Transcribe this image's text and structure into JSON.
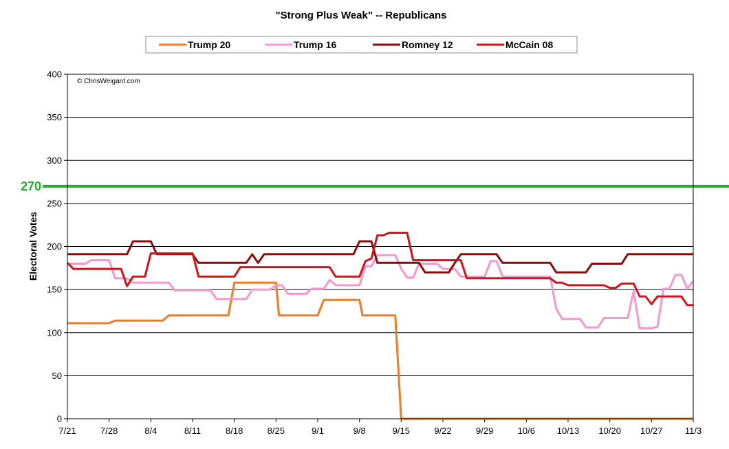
{
  "chart_data": {
    "type": "line",
    "title": "\"Strong Plus Weak\" -- Republicans",
    "ylabel": "Electoral Votes",
    "xlabel": "",
    "copyright": "© ChrisWeigant.com",
    "ylim": [
      0,
      400
    ],
    "yticks": [
      0,
      50,
      100,
      150,
      200,
      250,
      300,
      350,
      400
    ],
    "xlim_days": [
      0,
      105
    ],
    "x_tick_labels": [
      "7/21",
      "7/28",
      "8/4",
      "8/11",
      "8/18",
      "8/25",
      "9/1",
      "9/8",
      "9/15",
      "9/22",
      "9/29",
      "10/6",
      "10/13",
      "10/20",
      "10/27",
      "11/3"
    ],
    "x_tick_days": [
      0,
      7,
      14,
      21,
      28,
      35,
      42,
      49,
      56,
      63,
      70,
      77,
      84,
      91,
      98,
      105
    ],
    "grid": true,
    "legend_position": "top",
    "reference_line": {
      "value": 270,
      "label": "270",
      "color": "#22b02a"
    },
    "series": [
      {
        "name": "Trump 20",
        "color": "#f47a1f",
        "points": [
          [
            0,
            111
          ],
          [
            7,
            111
          ],
          [
            8,
            114
          ],
          [
            16,
            114
          ],
          [
            17,
            120
          ],
          [
            27,
            120
          ],
          [
            28,
            158
          ],
          [
            35,
            158
          ],
          [
            35.5,
            120
          ],
          [
            42,
            120
          ],
          [
            43,
            138
          ],
          [
            49,
            138
          ],
          [
            49.5,
            120
          ],
          [
            55,
            120
          ],
          [
            56,
            0
          ],
          [
            105,
            0
          ]
        ]
      },
      {
        "name": "Trump 16",
        "color": "#f598cc",
        "points": [
          [
            0,
            180
          ],
          [
            3,
            180
          ],
          [
            4,
            184
          ],
          [
            7,
            184
          ],
          [
            8,
            163
          ],
          [
            10,
            163
          ],
          [
            11,
            158
          ],
          [
            17,
            158
          ],
          [
            18,
            149
          ],
          [
            24,
            149
          ],
          [
            25,
            139
          ],
          [
            30,
            139
          ],
          [
            31,
            150
          ],
          [
            34,
            150
          ],
          [
            35,
            155
          ],
          [
            36,
            155
          ],
          [
            37,
            145
          ],
          [
            40,
            145
          ],
          [
            41,
            151
          ],
          [
            43,
            151
          ],
          [
            44,
            161
          ],
          [
            45,
            155
          ],
          [
            49,
            155
          ],
          [
            50,
            177
          ],
          [
            51,
            177
          ],
          [
            52,
            190
          ],
          [
            55,
            190
          ],
          [
            56,
            174
          ],
          [
            57,
            164
          ],
          [
            58,
            164
          ],
          [
            59,
            180
          ],
          [
            62,
            180
          ],
          [
            63,
            174
          ],
          [
            64,
            174
          ],
          [
            65,
            174
          ],
          [
            66,
            165
          ],
          [
            70,
            165
          ],
          [
            71,
            183
          ],
          [
            72,
            183
          ],
          [
            73,
            165
          ],
          [
            80,
            165
          ],
          [
            81,
            165
          ],
          [
            82,
            128
          ],
          [
            83,
            116
          ],
          [
            86,
            116
          ],
          [
            87,
            106
          ],
          [
            89,
            106
          ],
          [
            90,
            117
          ],
          [
            94,
            117
          ],
          [
            95,
            148
          ],
          [
            96,
            105
          ],
          [
            98,
            105
          ],
          [
            99,
            107
          ],
          [
            100,
            151
          ],
          [
            101,
            151
          ],
          [
            102,
            167
          ],
          [
            103,
            167
          ],
          [
            104,
            151
          ],
          [
            105,
            160
          ]
        ]
      },
      {
        "name": "Romney 12",
        "color": "#8b0a0a",
        "points": [
          [
            0,
            191
          ],
          [
            10,
            191
          ],
          [
            11,
            206
          ],
          [
            14,
            206
          ],
          [
            15,
            191
          ],
          [
            21,
            191
          ],
          [
            22,
            181
          ],
          [
            30,
            181
          ],
          [
            31,
            191
          ],
          [
            32,
            181
          ],
          [
            33,
            191
          ],
          [
            48,
            191
          ],
          [
            49,
            206
          ],
          [
            51,
            206
          ],
          [
            52,
            181
          ],
          [
            59,
            181
          ],
          [
            60,
            170
          ],
          [
            64,
            170
          ],
          [
            65,
            181
          ],
          [
            66,
            191
          ],
          [
            72,
            191
          ],
          [
            73,
            181
          ],
          [
            81,
            181
          ],
          [
            82,
            170
          ],
          [
            87,
            170
          ],
          [
            88,
            180
          ],
          [
            93,
            180
          ],
          [
            94,
            191
          ],
          [
            105,
            191
          ]
        ]
      },
      {
        "name": "McCain 08",
        "color": "#d4121a",
        "points": [
          [
            0,
            181
          ],
          [
            1,
            174
          ],
          [
            9,
            174
          ],
          [
            10,
            154
          ],
          [
            11,
            165
          ],
          [
            13,
            165
          ],
          [
            14,
            192
          ],
          [
            21,
            192
          ],
          [
            22,
            165
          ],
          [
            28,
            165
          ],
          [
            29,
            176
          ],
          [
            44,
            176
          ],
          [
            45,
            165
          ],
          [
            49,
            165
          ],
          [
            50,
            183
          ],
          [
            51,
            186
          ],
          [
            52,
            213
          ],
          [
            53,
            213
          ],
          [
            54,
            216
          ],
          [
            57,
            216
          ],
          [
            58,
            184
          ],
          [
            66,
            184
          ],
          [
            67,
            163
          ],
          [
            80,
            163
          ],
          [
            81,
            163
          ],
          [
            82,
            158
          ],
          [
            83,
            158
          ],
          [
            84,
            155
          ],
          [
            90,
            155
          ],
          [
            91,
            152
          ],
          [
            92,
            152
          ],
          [
            93,
            157
          ],
          [
            95,
            157
          ],
          [
            96,
            142
          ],
          [
            97,
            142
          ],
          [
            98,
            133
          ],
          [
            99,
            142
          ],
          [
            103,
            142
          ],
          [
            104,
            132
          ],
          [
            105,
            132
          ]
        ]
      }
    ]
  }
}
